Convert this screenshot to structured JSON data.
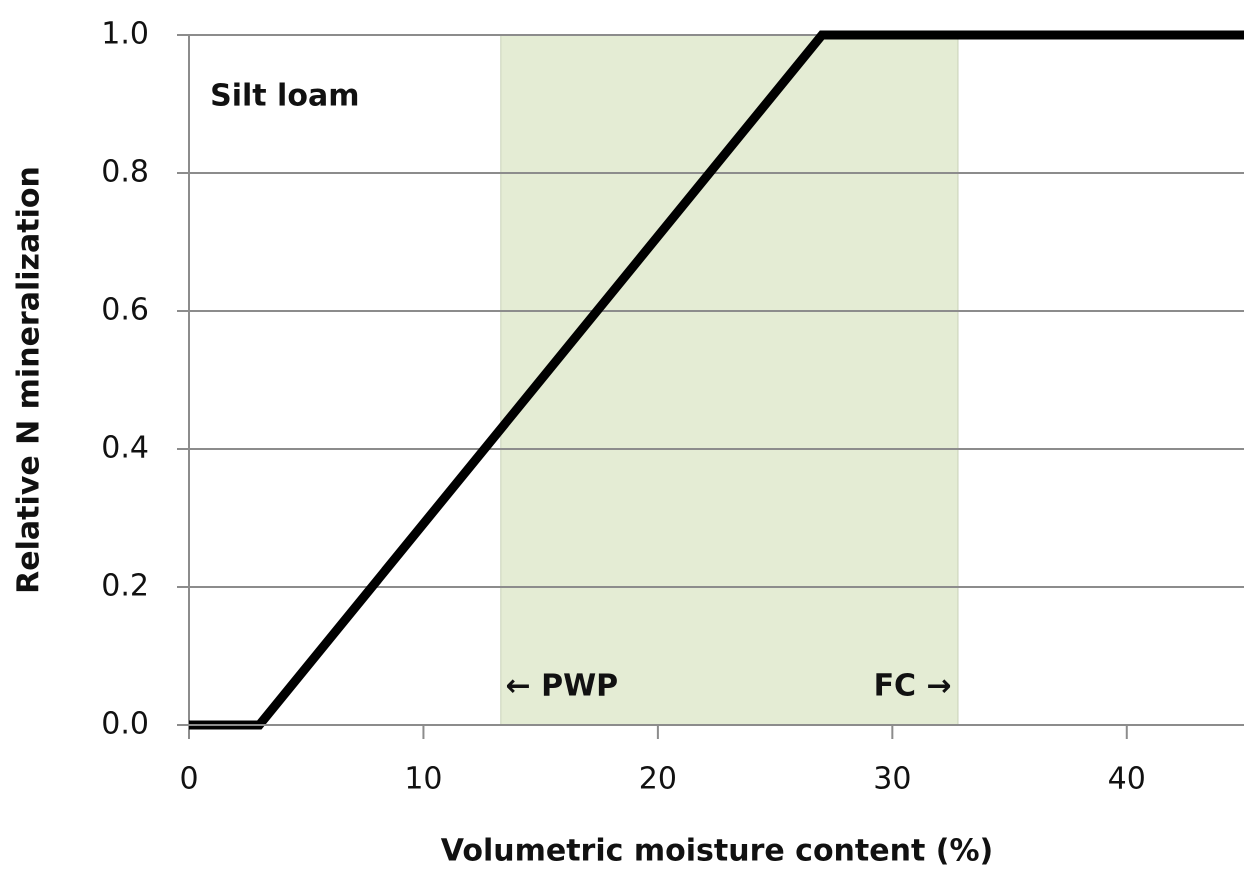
{
  "chart_data": {
    "type": "line",
    "x_label": "Volumetric moisture content (%)",
    "y_label": "Relative N mineralization",
    "x": [
      0,
      3,
      27,
      45
    ],
    "values": [
      0,
      0,
      1,
      1
    ],
    "color": "#000000",
    "xlim": [
      0,
      45
    ],
    "xticks": [
      0,
      10,
      20,
      30,
      40
    ],
    "ylim": [
      0,
      1
    ],
    "yticks": [
      {
        "value": 0,
        "label": "0.0"
      },
      0.2,
      0.4,
      0.6,
      0.8,
      {
        "value": 1,
        "label": "1.0"
      }
    ],
    "grid": true,
    "shaded_region": {
      "x": [
        13.3,
        32.8
      ],
      "color": "#e4ecd4"
    },
    "annotations": [
      {
        "text": "Silt loam",
        "x": 0.9,
        "y": 0.91
      },
      {
        "text": "← PWP",
        "x": 13.5,
        "y": 0.055
      },
      {
        "text": "FC →",
        "x": 29.2,
        "y": 0.055
      }
    ]
  }
}
